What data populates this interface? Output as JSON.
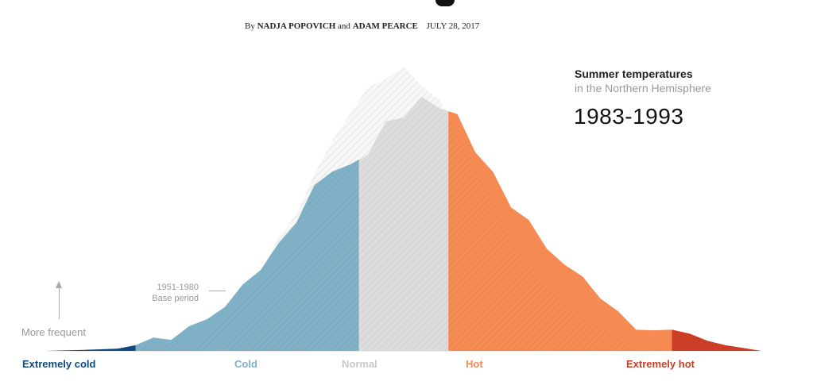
{
  "byline": {
    "prefix": "By",
    "authors": "NADJA POPOVICH",
    "connector": "and",
    "authors2": "ADAM PEARCE",
    "date": "JULY 28, 2017"
  },
  "legend": {
    "title": "Summer temperatures",
    "subtitle": "in the Northern Hemisphere",
    "period": "1983-1993"
  },
  "annotations": {
    "base_period": [
      "1951-1980",
      "Base period"
    ],
    "y_arrow": "More frequent"
  },
  "colors": {
    "extremely_cold": "#0e4a80",
    "cold": "#7fb0c6",
    "normal": "#dcdcdc",
    "hot": "#f58a52",
    "extremely_hot": "#cc3d26",
    "baseline": "#ececec"
  },
  "chart_data": {
    "type": "area",
    "xlabel": "",
    "ylabel": "More frequent",
    "categories": [
      {
        "key": "extremely_cold",
        "label": "Extremely cold",
        "color": "#0e4a80"
      },
      {
        "key": "cold",
        "label": "Cold",
        "color": "#7fb0c6"
      },
      {
        "key": "normal",
        "label": "Normal",
        "color": "#c9c9c9"
      },
      {
        "key": "hot",
        "label": "Hot",
        "color": "#f58a52"
      },
      {
        "key": "extremely_hot",
        "label": "Extremely hot",
        "color": "#cc3d26"
      }
    ],
    "x_range": [
      -4,
      4
    ],
    "category_bounds": [
      -4,
      -3,
      -0.5,
      0.5,
      3,
      4
    ],
    "y_range": [
      0,
      1
    ],
    "series": [
      {
        "name": "1951-1980 Base period",
        "x": [
          -4,
          -3.6,
          -3.2,
          -3,
          -2.8,
          -2.6,
          -2.4,
          -2.2,
          -2,
          -1.8,
          -1.6,
          -1.4,
          -1.2,
          -1,
          -0.8,
          -0.6,
          -0.4,
          -0.2,
          0,
          0.2,
          0.4,
          0.6,
          0.8,
          1,
          1.2,
          1.4,
          1.6,
          1.8,
          2,
          2.2,
          2.4,
          2.6,
          2.8,
          3,
          3.4,
          4
        ],
        "values": [
          0,
          0.005,
          0.01,
          0.012,
          0.02,
          0.035,
          0.05,
          0.08,
          0.12,
          0.19,
          0.28,
          0.39,
          0.5,
          0.63,
          0.75,
          0.84,
          0.92,
          0.97,
          1,
          0.96,
          0.89,
          0.78,
          0.64,
          0.52,
          0.41,
          0.32,
          0.24,
          0.17,
          0.12,
          0.08,
          0.05,
          0.03,
          0.02,
          0.01,
          0.005,
          0
        ]
      },
      {
        "name": "1983-1993",
        "x": [
          -4,
          -3.6,
          -3.2,
          -3,
          -2.8,
          -2.6,
          -2.4,
          -2.2,
          -2,
          -1.8,
          -1.6,
          -1.4,
          -1.2,
          -1,
          -0.8,
          -0.6,
          -0.4,
          -0.2,
          0,
          0.2,
          0.4,
          0.6,
          0.8,
          1,
          1.2,
          1.4,
          1.6,
          1.8,
          2,
          2.2,
          2.4,
          2.6,
          2.8,
          3,
          3.2,
          3.4,
          3.6,
          3.8,
          4
        ],
        "values": [
          0,
          0.003,
          0.008,
          0.02,
          0.03,
          0.05,
          0.09,
          0.12,
          0.16,
          0.22,
          0.29,
          0.37,
          0.47,
          0.59,
          0.64,
          0.66,
          0.68,
          0.82,
          0.82,
          0.92,
          0.86,
          0.84,
          0.7,
          0.62,
          0.52,
          0.46,
          0.38,
          0.3,
          0.26,
          0.18,
          0.13,
          0.09,
          0.07,
          0.09,
          0.05,
          0.03,
          0.02,
          0.01,
          0
        ]
      }
    ]
  }
}
